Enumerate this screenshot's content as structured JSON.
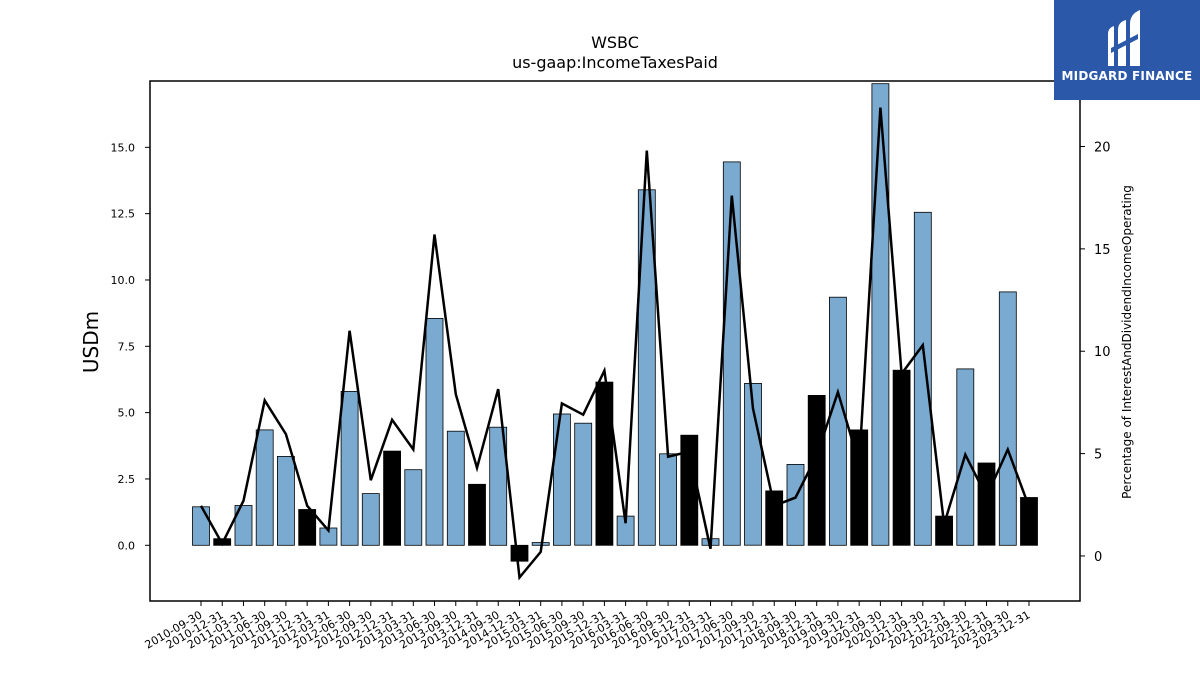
{
  "chart_data": {
    "type": "bar",
    "title": "WSBC",
    "subtitle": "us-gaap:IncomeTaxesPaid",
    "ylabel": "USDm",
    "ylabel_right": "Percentage of InterestAndDividendIncomeOperating",
    "ylim": [
      -2.1,
      17.5
    ],
    "ylim_right": [
      -2.2,
      23.2
    ],
    "yticks": [
      "0.0",
      "2.5",
      "5.0",
      "7.5",
      "10.0",
      "12.5",
      "15.0"
    ],
    "yticks_right": [
      "0",
      "5",
      "10",
      "15",
      "20"
    ],
    "bar_colors": {
      "primary": "#7aaad0",
      "alternate": "#000000"
    },
    "line_color": "#000000",
    "categories": [
      "2010-09-30",
      "2010-12-31",
      "2011-03-31",
      "2011-06-30",
      "2011-09-30",
      "2011-12-31",
      "2012-03-31",
      "2012-06-30",
      "2012-09-30",
      "2012-12-31",
      "2013-03-31",
      "2013-06-30",
      "2013-09-30",
      "2013-12-31",
      "2014-09-30",
      "2014-12-31",
      "2015-03-31",
      "2015-06-30",
      "2015-09-30",
      "2015-12-31",
      "2016-03-31",
      "2016-06-30",
      "2016-09-30",
      "2016-12-31",
      "2017-03-31",
      "2017-06-30",
      "2017-09-30",
      "2017-12-31",
      "2018-09-30",
      "2018-12-31",
      "2019-09-30",
      "2019-12-31",
      "2020-09-30",
      "2020-12-31",
      "2021-09-30",
      "2021-12-31",
      "2022-09-30",
      "2022-12-31",
      "2023-09-30",
      "2023-12-31"
    ],
    "bar_series": {
      "name": "IncomeTaxesPaid",
      "values": [
        1.45,
        0.25,
        1.5,
        4.35,
        3.35,
        1.35,
        0.65,
        5.8,
        1.95,
        3.55,
        2.85,
        8.55,
        4.3,
        2.3,
        4.45,
        -0.6,
        0.1,
        4.95,
        4.6,
        6.15,
        1.1,
        13.4,
        3.45,
        4.15,
        0.25,
        14.45,
        6.1,
        2.05,
        3.05,
        5.65,
        9.35,
        4.35,
        17.4,
        6.6,
        12.55,
        1.1,
        6.65,
        3.1,
        9.55,
        1.8
      ],
      "highlighted": [
        false,
        true,
        false,
        false,
        false,
        true,
        false,
        false,
        false,
        true,
        false,
        false,
        false,
        true,
        false,
        true,
        false,
        false,
        false,
        true,
        false,
        false,
        false,
        true,
        false,
        false,
        false,
        true,
        false,
        true,
        false,
        true,
        false,
        true,
        false,
        true,
        false,
        true,
        false,
        true
      ]
    },
    "line_series": {
      "name": "Percentage of InterestAndDividendIncomeOperating",
      "values": [
        2.45,
        0.6,
        2.7,
        7.6,
        5.95,
        2.45,
        1.25,
        11.0,
        3.7,
        6.65,
        5.2,
        15.7,
        7.9,
        4.3,
        8.15,
        -1.05,
        0.2,
        7.45,
        6.9,
        9.05,
        1.6,
        19.8,
        4.85,
        5.1,
        0.35,
        17.6,
        7.2,
        2.45,
        2.85,
        4.9,
        8.0,
        4.5,
        21.9,
        8.9,
        10.3,
        1.55,
        4.95,
        2.9,
        5.2,
        2.4
      ]
    }
  },
  "branding": {
    "logo_text": "MIDGARD FINANCE"
  }
}
